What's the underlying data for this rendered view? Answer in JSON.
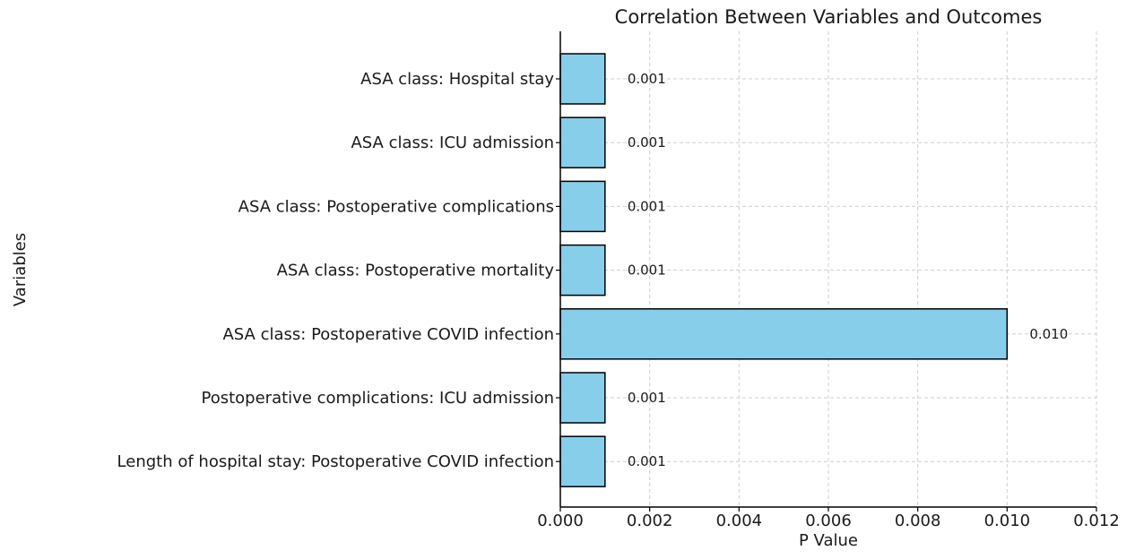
{
  "chart_data": {
    "type": "bar",
    "orientation": "horizontal",
    "title": "Correlation Between Variables and Outcomes",
    "xlabel": "P Value",
    "ylabel": "Variables",
    "categories": [
      "ASA class: Hospital stay",
      "ASA class: ICU admission",
      "ASA class: Postoperative complications",
      "ASA class: Postoperative mortality",
      "ASA class: Postoperative COVID infection",
      "Postoperative complications: ICU admission",
      "Length of hospital stay: Postoperative COVID infection"
    ],
    "values": [
      0.001,
      0.001,
      0.001,
      0.001,
      0.01,
      0.001,
      0.001
    ],
    "value_labels": [
      "0.001",
      "0.001",
      "0.001",
      "0.001",
      "0.010",
      "0.001",
      "0.001"
    ],
    "xlim": [
      0,
      0.012
    ],
    "xticks": [
      "0.000",
      "0.002",
      "0.004",
      "0.006",
      "0.008",
      "0.010",
      "0.012"
    ],
    "grid": true,
    "bar_color": "#87CEEB",
    "edge_color": "#000000"
  }
}
